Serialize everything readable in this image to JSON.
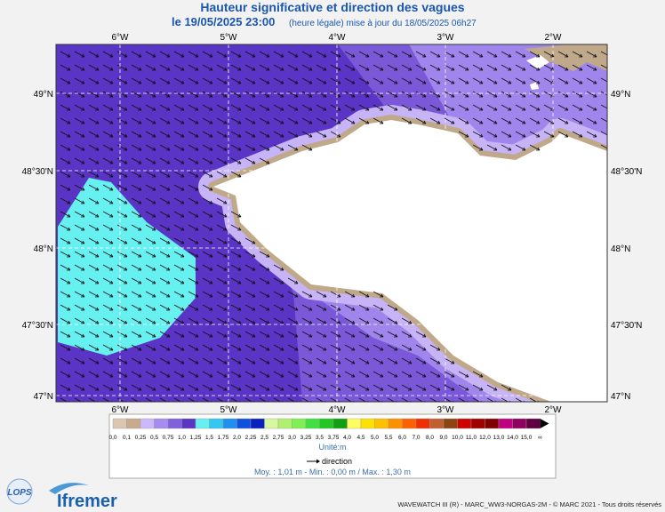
{
  "header": {
    "title": "Hauteur significative et direction des vagues",
    "date": "le 19/05/2025 23:00",
    "update": "(heure légale) mise à jour du 18/05/2025 06h27"
  },
  "map": {
    "lon_labels": [
      "6°W",
      "5°W",
      "4°W",
      "3°W",
      "2°W"
    ],
    "lat_labels": [
      "49°N",
      "48°30'N",
      "48°N",
      "47°30'N",
      "47°N"
    ]
  },
  "legend": {
    "labels": [
      "0,0",
      "0,1",
      "0,25",
      "0,5",
      "0,75",
      "1,0",
      "1,25",
      "1,5",
      "1,75",
      "2,0",
      "2,25",
      "2,5",
      "2,75",
      "3,0",
      "3,25",
      "3,5",
      "3,75",
      "4,0",
      "4,5",
      "5,0",
      "5,5",
      "6,0",
      "7,0",
      "8,0",
      "9,0",
      "10,0",
      "11,0",
      "12,0",
      "13,0",
      "14,0",
      "15,0",
      "∞"
    ],
    "colors": [
      "#dcc6b0",
      "#c8ab8e",
      "#cdb9f9",
      "#a68bf0",
      "#8060dc",
      "#5a34c4",
      "#66f0f0",
      "#33c8f0",
      "#1e90f0",
      "#1050e0",
      "#0a20c0",
      "#d8f8a0",
      "#b0f070",
      "#80f050",
      "#40e040",
      "#20c820",
      "#10a010",
      "#ffff60",
      "#ffe000",
      "#ffc000",
      "#ff9000",
      "#ff6000",
      "#f03000",
      "#c06030",
      "#8b4513",
      "#d00000",
      "#a00000",
      "#800000",
      "#c00080",
      "#900060",
      "#600040"
    ],
    "unit": "Unité:m",
    "direction": "direction",
    "stats": "Moy. : 1,01 m   -   Min. : 0,00 m / Max. : 1,30 m"
  },
  "logos": {
    "lops": "LOPS",
    "ifremer": "Ifremer"
  },
  "footer": "WAVEWATCH III (R) - MARC_WW3-NORGAS-2M - © MARC 2021 - Tous droits réservés"
}
